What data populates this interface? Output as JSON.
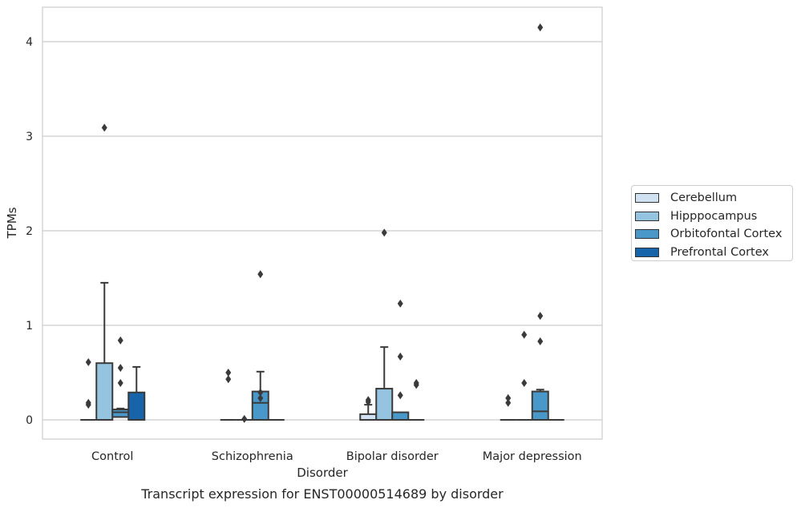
{
  "chart_data": {
    "type": "boxplot",
    "title": "Transcript expression for ENST00000514689 by disorder",
    "xlabel": "Disorder",
    "ylabel": "TPMs",
    "categories": [
      "Control",
      "Schizophrenia",
      "Bipolar disorder",
      "Major depression"
    ],
    "yticks": [
      0,
      1,
      2,
      3,
      4
    ],
    "ylim": [
      -0.2,
      4.37
    ],
    "grid": "horizontal",
    "legend_position": "right",
    "series": [
      {
        "name": "Cerebellum",
        "color": "#d0e1f2",
        "boxes": [
          {
            "q1": 0,
            "median": 0,
            "q3": 0,
            "whisker_low": 0,
            "whisker_high": 0,
            "fliers": [
              0.61,
              0.18,
              0.16
            ]
          },
          {
            "q1": 0,
            "median": 0,
            "q3": 0,
            "whisker_low": 0,
            "whisker_high": 0,
            "fliers": [
              0.5,
              0.43
            ]
          },
          {
            "q1": 0,
            "median": 0,
            "q3": 0.06,
            "whisker_low": 0,
            "whisker_high": 0.16,
            "fliers": [
              0.21,
              0.19
            ]
          },
          {
            "q1": 0,
            "median": 0,
            "q3": 0,
            "whisker_low": 0,
            "whisker_high": 0,
            "fliers": [
              0.23,
              0.18
            ]
          }
        ]
      },
      {
        "name": "Hipppocampus",
        "color": "#94c4df",
        "boxes": [
          {
            "q1": 0,
            "median": 0,
            "q3": 0.6,
            "whisker_low": 0,
            "whisker_high": 1.45,
            "fliers": [
              3.09
            ]
          },
          {
            "q1": 0,
            "median": 0,
            "q3": 0,
            "whisker_low": 0,
            "whisker_high": 0,
            "fliers": [
              0.01
            ]
          },
          {
            "q1": 0,
            "median": 0,
            "q3": 0.33,
            "whisker_low": 0,
            "whisker_high": 0.77,
            "fliers": [
              1.98
            ]
          },
          {
            "q1": 0,
            "median": 0,
            "q3": 0,
            "whisker_low": 0,
            "whisker_high": 0,
            "fliers": [
              0.9,
              0.39
            ]
          }
        ]
      },
      {
        "name": "Orbitofontal Cortex",
        "color": "#4a98c9",
        "boxes": [
          {
            "q1": 0.03,
            "median": 0.08,
            "q3": 0.11,
            "whisker_low": 0,
            "whisker_high": 0.12,
            "fliers": [
              0.84,
              0.55,
              0.39
            ]
          },
          {
            "q1": 0,
            "median": 0.18,
            "q3": 0.3,
            "whisker_low": 0,
            "whisker_high": 0.51,
            "fliers": [
              1.54,
              0.29,
              0.23
            ]
          },
          {
            "q1": 0,
            "median": 0,
            "q3": 0.08,
            "whisker_low": 0,
            "whisker_high": 0.08,
            "fliers": [
              1.23,
              0.67,
              0.26
            ]
          },
          {
            "q1": 0,
            "median": 0.09,
            "q3": 0.3,
            "whisker_low": 0,
            "whisker_high": 0.32,
            "fliers": [
              4.15,
              1.1,
              0.83
            ]
          }
        ]
      },
      {
        "name": "Prefrontal Cortex",
        "color": "#1764ab",
        "boxes": [
          {
            "q1": 0,
            "median": 0,
            "q3": 0.29,
            "whisker_low": 0,
            "whisker_high": 0.56,
            "fliers": []
          },
          {
            "q1": 0,
            "median": 0,
            "q3": 0,
            "whisker_low": 0,
            "whisker_high": 0,
            "fliers": []
          },
          {
            "q1": 0,
            "median": 0,
            "q3": 0,
            "whisker_low": 0,
            "whisker_high": 0,
            "fliers": [
              0.39,
              0.37
            ]
          },
          {
            "q1": 0,
            "median": 0,
            "q3": 0,
            "whisker_low": 0,
            "whisker_high": 0,
            "fliers": []
          }
        ]
      }
    ]
  }
}
